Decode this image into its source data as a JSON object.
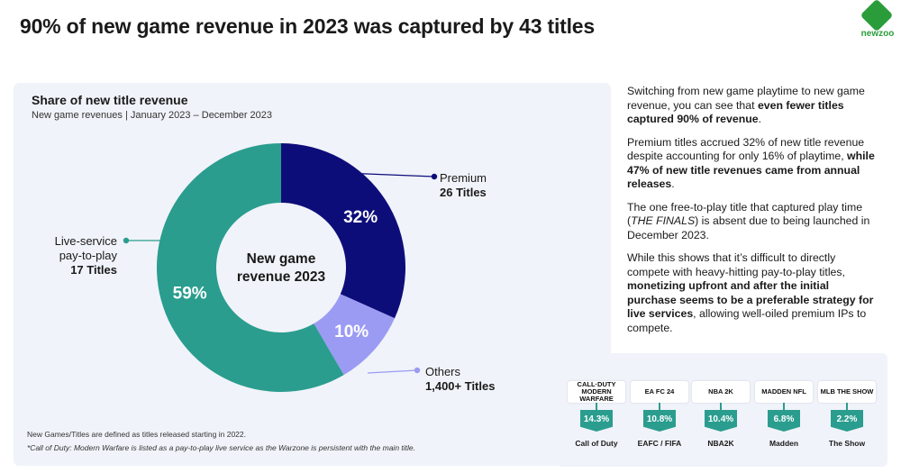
{
  "header": {
    "title": "90% of new game revenue in 2023 was captured by 43 titles"
  },
  "brand": {
    "name": "newzoo",
    "color": "#2a9d3a"
  },
  "chart_data": {
    "type": "pie",
    "title": "Share of new title revenue",
    "subtitle": "New game revenues | January 2023 – December 2023",
    "center_label": [
      "New game",
      "revenue 2023"
    ],
    "slices": [
      {
        "name": "Premium",
        "count_label": "26 Titles",
        "value": 32,
        "label": "32%",
        "color": "#0d0d7a"
      },
      {
        "name": "Others",
        "count_label": "1,400+ Titles",
        "value": 10,
        "label": "10%",
        "color": "#9b9bf4"
      },
      {
        "name": "Live-service pay-to-play",
        "name_lines": [
          "Live-service",
          "pay-to-play"
        ],
        "count_label": "17 Titles",
        "value": 59,
        "label": "59%",
        "color": "#2a9d8f"
      }
    ]
  },
  "footnotes": [
    "New Games/Titles are defined as titles released starting in 2022.",
    "*Call of Duty: Modern Warfare is listed as a pay-to-play live service as the Warzone is persistent with the main title."
  ],
  "commentary": {
    "p1": {
      "a": "Switching from new game playtime to new game revenue, you can see that ",
      "b": "even fewer titles captured 90% of revenue",
      "c": "."
    },
    "p2": {
      "a": "Premium titles accrued 32% of new title revenue despite accounting for only 16% of playtime, ",
      "b": "while 47% of new title revenues came from annual releases",
      "c": "."
    },
    "p3": {
      "a": "The one free-to-play title that captured play time (",
      "b": "THE FINALS",
      "c": ") is absent due to being launched in December 2023."
    },
    "p4": {
      "a": "While this shows that it’s difficult to directly compete with heavy-hitting pay-to-play titles, ",
      "b": "monetizing upfront and after the initial purchase seems to be a preferable strategy for live services",
      "c": ", allowing well-oiled premium IPs to compete."
    }
  },
  "top_titles": [
    {
      "logo": "CALL·DUTY MODERN WARFARE",
      "share": "14.3%",
      "name": "Call of Duty"
    },
    {
      "logo": "EA FC 24",
      "share": "10.8%",
      "name": "EAFC / FIFA"
    },
    {
      "logo": "NBA 2K",
      "share": "10.4%",
      "name": "NBA2K"
    },
    {
      "logo": "MADDEN NFL",
      "share": "6.8%",
      "name": "Madden"
    },
    {
      "logo": "MLB THE SHOW",
      "share": "2.2%",
      "name": "The Show"
    }
  ]
}
